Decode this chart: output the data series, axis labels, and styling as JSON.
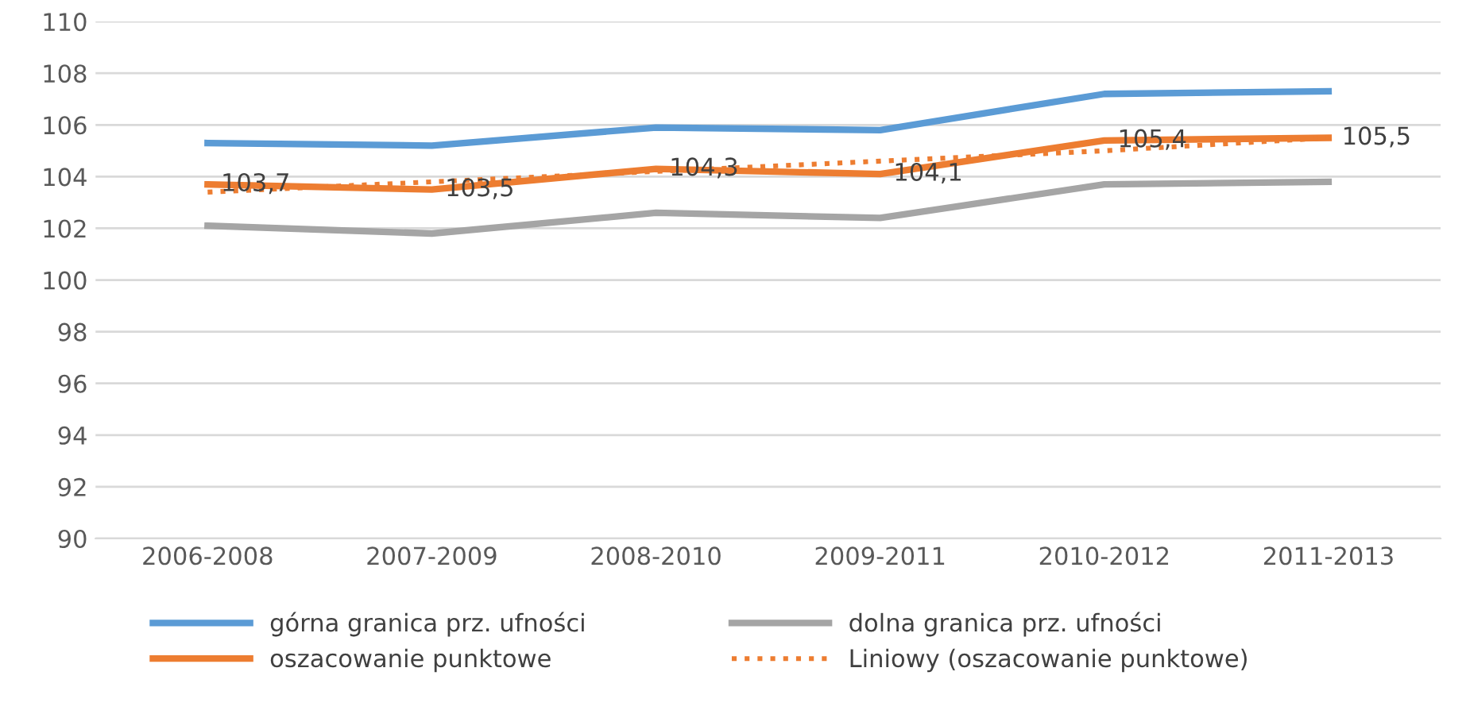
{
  "chart_data": {
    "type": "line",
    "categories": [
      "2006-2008",
      "2007-2009",
      "2008-2010",
      "2009-2011",
      "2010-2012",
      "2011-2013"
    ],
    "series": [
      {
        "name": "górna granica prz. ufności",
        "color": "#5b9bd5",
        "values": [
          105.3,
          105.2,
          105.9,
          105.8,
          107.2,
          107.3
        ]
      },
      {
        "name": "oszacowanie punktowe",
        "color": "#ed7d31",
        "values": [
          103.7,
          103.5,
          104.3,
          104.1,
          105.4,
          105.5
        ],
        "value_labels": [
          "103,7",
          "103,5",
          "104,3",
          "104,1",
          "105,4",
          "105,5"
        ]
      },
      {
        "name": "dolna granica prz. ufności",
        "color": "#a5a5a5",
        "values": [
          102.1,
          101.8,
          102.6,
          102.4,
          103.7,
          103.8
        ]
      },
      {
        "name": "Liniowy (oszacowanie punktowe)",
        "color": "#ed7d31",
        "values": [
          103.4,
          103.8,
          104.2,
          104.6,
          105.0,
          105.5
        ],
        "line_style": "dotted"
      }
    ],
    "ylim": [
      90,
      110
    ],
    "yticks": [
      90,
      92,
      94,
      96,
      98,
      100,
      102,
      104,
      106,
      108,
      110
    ],
    "grid": "y",
    "legend": "bottom",
    "marker": "none"
  }
}
